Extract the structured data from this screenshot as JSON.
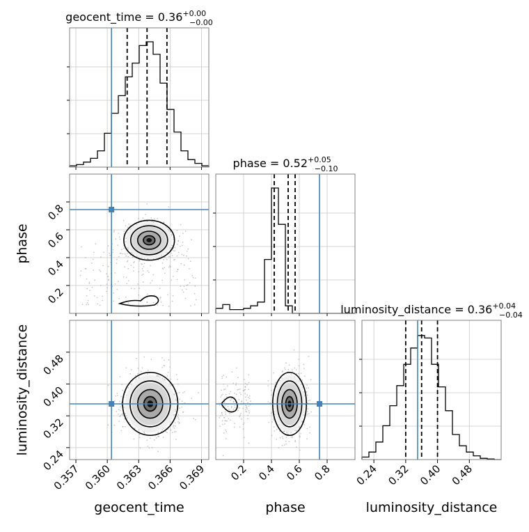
{
  "chart_data": {
    "type": "corner",
    "parameters": [
      "geocent_time",
      "phase",
      "luminosity_distance"
    ],
    "titles": [
      {
        "param": "geocent_time",
        "prefix": "geocent_time = ",
        "median": "0.36",
        "plus": "+0.00",
        "minus": "−0.00"
      },
      {
        "param": "phase",
        "prefix": "phase = ",
        "median": "0.52",
        "plus": "+0.05",
        "minus": "−0.10"
      },
      {
        "param": "luminosity_distance",
        "prefix": "luminosity_distance = ",
        "median": "0.36",
        "plus": "+0.04",
        "minus": "−0.04"
      }
    ],
    "axis_ranges": {
      "geocent_time": [
        0.3564,
        0.3697
      ],
      "phase": [
        0.0,
        1.0
      ],
      "luminosity_distance": [
        0.21,
        0.56
      ]
    },
    "ticks": {
      "geocent_time": {
        "values": [
          0.357,
          0.36,
          0.363,
          0.366,
          0.369
        ],
        "labels": [
          "0.357",
          "0.360",
          "0.363",
          "0.366",
          "0.369"
        ]
      },
      "phase": {
        "values": [
          0.2,
          0.4,
          0.6,
          0.8
        ],
        "labels": [
          "0.2",
          "0.4",
          "0.6",
          "0.8"
        ]
      },
      "luminosity_distance": {
        "values": [
          0.24,
          0.32,
          0.4,
          0.48
        ],
        "labels": [
          "0.24",
          "0.32",
          "0.40",
          "0.48"
        ]
      }
    },
    "truths": {
      "geocent_time": 0.3604,
      "phase": 0.745,
      "luminosity_distance": 0.35
    },
    "quantiles": {
      "geocent_time": [
        0.3619,
        0.3638,
        0.3657
      ],
      "phase": [
        0.42,
        0.52,
        0.57
      ],
      "luminosity_distance": [
        0.32,
        0.36,
        0.4
      ]
    },
    "histograms": {
      "geocent_time": [
        0.01,
        0.02,
        0.04,
        0.07,
        0.13,
        0.27,
        0.43,
        0.57,
        0.72,
        0.83,
        0.97,
        1.0,
        0.9,
        0.67,
        0.46,
        0.28,
        0.13,
        0.06,
        0.03,
        0.01
      ],
      "phase": [
        0.04,
        0.07,
        0.03,
        0.03,
        0.04,
        0.06,
        0.09,
        0.43,
        1.0,
        0.71,
        0.06,
        0.0,
        0.0,
        0.0,
        0.0,
        0.0,
        0.0,
        0.0,
        0.0,
        0.0
      ],
      "luminosity_distance": [
        0.02,
        0.06,
        0.14,
        0.27,
        0.43,
        0.59,
        0.76,
        0.89,
        0.99,
        0.97,
        0.76,
        0.58,
        0.39,
        0.2,
        0.11,
        0.06,
        0.03,
        0.01,
        0.005,
        0.0
      ]
    },
    "pair_centers": {
      "geocent_time_phase": {
        "x": 0.364,
        "y": 0.525
      },
      "geocent_time_luminosity_distance": {
        "x": 0.3641,
        "y": 0.35
      },
      "phase_luminosity_distance": {
        "x": 0.53,
        "y": 0.35
      }
    },
    "grid": true
  },
  "labels": {
    "x_geocent_time": "geocent_time",
    "x_phase": "phase",
    "x_luminosity_distance": "luminosity_distance",
    "y_phase": "phase",
    "y_luminosity_distance": "luminosity_distance"
  }
}
